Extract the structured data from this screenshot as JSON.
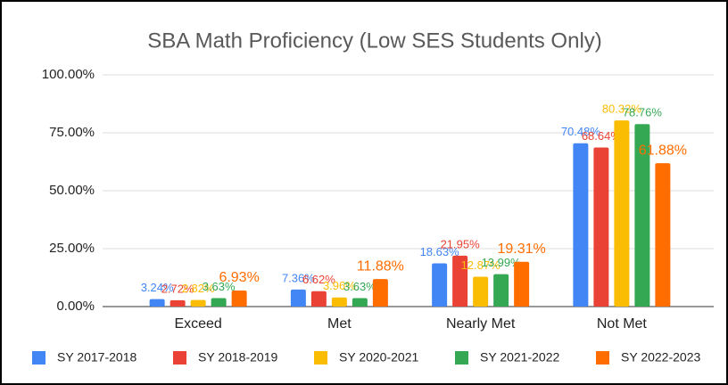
{
  "chart_data": {
    "type": "bar",
    "title": "SBA Math Proficiency (Low SES Students Only)",
    "categories": [
      "Exceed",
      "Met",
      "Nearly Met",
      "Not Met"
    ],
    "series": [
      {
        "name": "SY 2017-2018",
        "color": "#4285f4",
        "values": [
          3.24,
          7.36,
          18.63,
          70.48
        ],
        "value_labels": [
          "3.24%",
          "7.36%",
          "18.63%",
          "70.48%"
        ]
      },
      {
        "name": "SY 2018-2019",
        "color": "#ea4335",
        "values": [
          2.72,
          6.62,
          21.95,
          68.64
        ],
        "value_labels": [
          "2.72%",
          "6.62%",
          "21.95%",
          "68.64%"
        ]
      },
      {
        "name": "SY 2020-2021",
        "color": "#fbbc04",
        "values": [
          2.82,
          3.96,
          12.87,
          80.32
        ],
        "value_labels": [
          "2.82%",
          "3.96%",
          "12.87%",
          "80.32%"
        ]
      },
      {
        "name": "SY 2021-2022",
        "color": "#34a853",
        "values": [
          3.63,
          3.63,
          13.99,
          78.76
        ],
        "value_labels": [
          "3.63%",
          "3.63%",
          "13.99%",
          "78.76%"
        ]
      },
      {
        "name": "SY 2022-2023",
        "color": "#ff6d01",
        "values": [
          6.93,
          11.88,
          19.31,
          61.88
        ],
        "value_labels": [
          "6.93%",
          "11.88%",
          "19.31%",
          "61.88%"
        ]
      }
    ],
    "ylim": [
      0,
      100
    ],
    "yticks": [
      {
        "value": 0,
        "label": "0.00%"
      },
      {
        "value": 25,
        "label": "25.00%"
      },
      {
        "value": 50,
        "label": "50.00%"
      },
      {
        "value": 75,
        "label": "75.00%"
      },
      {
        "value": 100,
        "label": "100.00%"
      }
    ],
    "grid": true,
    "legend": "bottom"
  }
}
